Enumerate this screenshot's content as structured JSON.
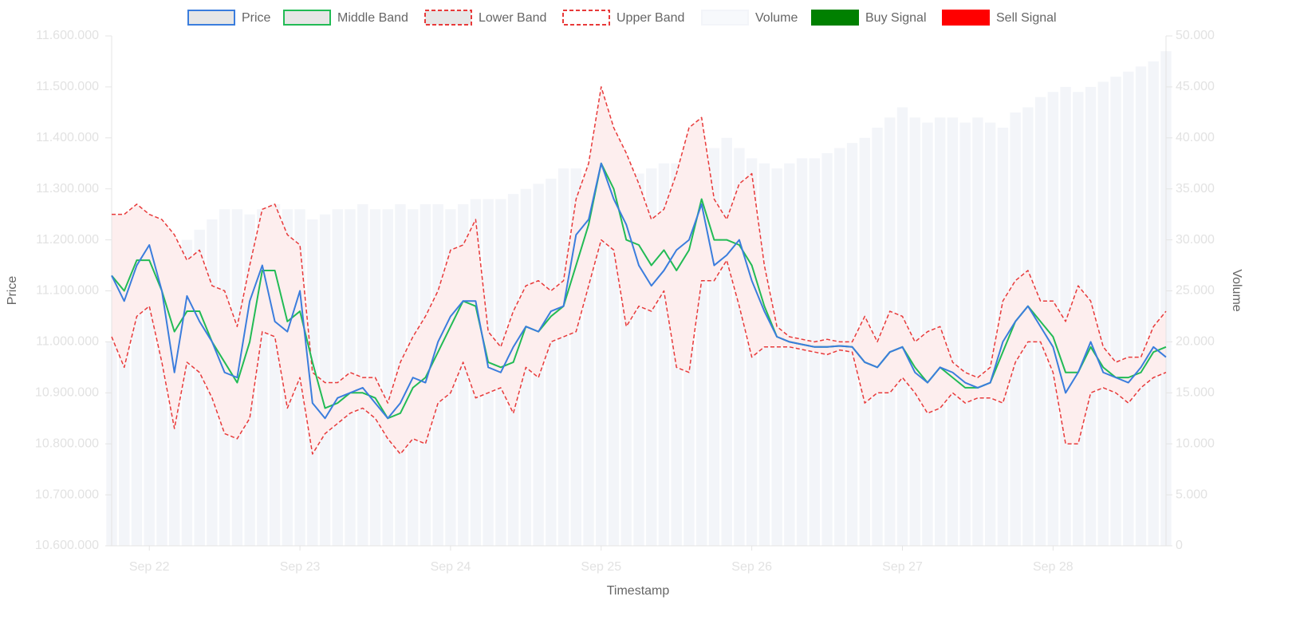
{
  "chart_data": {
    "type": "line",
    "x_label": "Timestamp",
    "y_label": "Price",
    "y2_label": "Volume",
    "band_fill": "#fdeeee",
    "categories": [
      null,
      null,
      null,
      "Sep 22",
      null,
      null,
      null,
      null,
      null,
      null,
      null,
      null,
      null,
      null,
      null,
      "Sep 23",
      null,
      null,
      null,
      null,
      null,
      null,
      null,
      null,
      null,
      null,
      null,
      "Sep 24",
      null,
      null,
      null,
      null,
      null,
      null,
      null,
      null,
      null,
      null,
      null,
      "Sep 25",
      null,
      null,
      null,
      null,
      null,
      null,
      null,
      null,
      null,
      null,
      null,
      "Sep 26",
      null,
      null,
      null,
      null,
      null,
      null,
      null,
      null,
      null,
      null,
      null,
      "Sep 27",
      null,
      null,
      null,
      null,
      null,
      null,
      null,
      null,
      null,
      null,
      null,
      "Sep 28",
      null,
      null,
      null,
      null,
      null,
      null,
      null,
      null,
      null
    ],
    "ylim": [
      10600000,
      11600000
    ],
    "yticks": [
      {
        "value": 10600000,
        "label": "10.600.000"
      },
      {
        "value": 10700000,
        "label": "10.700.000"
      },
      {
        "value": 10800000,
        "label": "10.800.000"
      },
      {
        "value": 10900000,
        "label": "10.900.000"
      },
      {
        "value": 11000000,
        "label": "11.000.000"
      },
      {
        "value": 11100000,
        "label": "11.100.000"
      },
      {
        "value": 11200000,
        "label": "11.200.000"
      },
      {
        "value": 11300000,
        "label": "11.300.000"
      },
      {
        "value": 11400000,
        "label": "11.400.000"
      },
      {
        "value": 11500000,
        "label": "11.500.000"
      },
      {
        "value": 11600000,
        "label": "11.600.000"
      }
    ],
    "y2lim": [
      0,
      50000
    ],
    "y2ticks": [
      0,
      {
        "value": 5000,
        "label": "5.000"
      },
      {
        "value": 10000,
        "label": "10.000"
      },
      {
        "value": 15000,
        "label": "15.000"
      },
      {
        "value": 20000,
        "label": "20.000"
      },
      {
        "value": 25000,
        "label": "25.000"
      },
      {
        "value": 30000,
        "label": "30.000"
      },
      {
        "value": 35000,
        "label": "35.000"
      },
      {
        "value": 40000,
        "label": "40.000"
      },
      {
        "value": 45000,
        "label": "45.000"
      },
      {
        "value": 50000,
        "label": "50.000"
      }
    ],
    "series": [
      {
        "name": "Price",
        "color": "#3b7ddd",
        "swatch_fill": "#e6e6e6",
        "values": [
          11130000,
          11080000,
          11150000,
          11190000,
          11100000,
          10940000,
          11090000,
          11040000,
          11000000,
          10940000,
          10930000,
          11080000,
          11150000,
          11040000,
          11020000,
          11100000,
          10880000,
          10850000,
          10890000,
          10900000,
          10910000,
          10880000,
          10850000,
          10880000,
          10930000,
          10920000,
          11000000,
          11050000,
          11080000,
          11080000,
          10950000,
          10940000,
          10990000,
          11030000,
          11020000,
          11060000,
          11070000,
          11210000,
          11240000,
          11350000,
          11280000,
          11230000,
          11150000,
          11110000,
          11140000,
          11180000,
          11200000,
          11270000,
          11150000,
          11170000,
          11200000,
          11120000,
          11060000,
          11010000,
          11000000,
          10995000,
          10990000,
          10990000,
          10992000,
          10990000,
          10960000,
          10950000,
          10980000,
          10990000,
          10940000,
          10920000,
          10950000,
          10940000,
          10920000,
          10910000,
          10920000,
          11000000,
          11040000,
          11070000,
          11030000,
          10990000,
          10900000,
          10940000,
          11000000,
          10940000,
          10930000,
          10920000,
          10950000,
          10990000,
          10970000
        ]
      },
      {
        "name": "Middle Band",
        "color": "#22bb55",
        "swatch_fill": "#e6e6e6",
        "values": [
          11130000,
          11100000,
          11160000,
          11160000,
          11100000,
          11020000,
          11060000,
          11060000,
          11000000,
          10960000,
          10920000,
          11000000,
          11140000,
          11140000,
          11040000,
          11060000,
          10960000,
          10870000,
          10880000,
          10900000,
          10900000,
          10890000,
          10850000,
          10860000,
          10910000,
          10930000,
          10980000,
          11030000,
          11080000,
          11070000,
          10960000,
          10950000,
          10960000,
          11030000,
          11020000,
          11050000,
          11070000,
          11150000,
          11230000,
          11350000,
          11300000,
          11200000,
          11190000,
          11150000,
          11180000,
          11140000,
          11180000,
          11280000,
          11200000,
          11200000,
          11190000,
          11150000,
          11070000,
          11010000,
          11000000,
          10995000,
          10990000,
          10990000,
          10992000,
          10990000,
          10960000,
          10950000,
          10980000,
          10990000,
          10950000,
          10920000,
          10950000,
          10930000,
          10910000,
          10910000,
          10920000,
          10980000,
          11040000,
          11070000,
          11040000,
          11010000,
          10940000,
          10940000,
          10990000,
          10950000,
          10930000,
          10930000,
          10940000,
          10980000,
          10990000
        ]
      },
      {
        "name": "Lower Band",
        "color": "#e83a3a",
        "swatch_fill": "#e6e6e6",
        "dashed": true,
        "values": [
          11010000,
          10950000,
          11050000,
          11070000,
          10960000,
          10830000,
          10960000,
          10940000,
          10890000,
          10820000,
          10810000,
          10850000,
          11020000,
          11010000,
          10870000,
          10930000,
          10780000,
          10820000,
          10840000,
          10860000,
          10870000,
          10850000,
          10810000,
          10780000,
          10810000,
          10800000,
          10880000,
          10900000,
          10960000,
          10890000,
          10900000,
          10910000,
          10860000,
          10950000,
          10930000,
          11000000,
          11010000,
          11020000,
          11110000,
          11200000,
          11180000,
          11030000,
          11070000,
          11060000,
          11100000,
          10950000,
          10940000,
          11120000,
          11120000,
          11160000,
          11070000,
          10970000,
          10990000,
          10990000,
          10990000,
          10985000,
          10980000,
          10975000,
          10984000,
          10980000,
          10880000,
          10900000,
          10900000,
          10930000,
          10900000,
          10860000,
          10870000,
          10900000,
          10880000,
          10890000,
          10890000,
          10880000,
          10960000,
          11000000,
          11000000,
          10940000,
          10800000,
          10800000,
          10900000,
          10910000,
          10900000,
          10880000,
          10910000,
          10930000,
          10940000
        ]
      },
      {
        "name": "Upper Band",
        "color": "#e83a3a",
        "swatch_fill": "#ffffff",
        "dashed": true,
        "values": [
          11250000,
          11250000,
          11270000,
          11250000,
          11240000,
          11210000,
          11160000,
          11180000,
          11110000,
          11100000,
          11030000,
          11150000,
          11260000,
          11270000,
          11210000,
          11190000,
          10940000,
          10920000,
          10920000,
          10940000,
          10930000,
          10930000,
          10880000,
          10960000,
          11010000,
          11050000,
          11100000,
          11180000,
          11190000,
          11240000,
          11020000,
          10990000,
          11060000,
          11110000,
          11120000,
          11100000,
          11120000,
          11280000,
          11350000,
          11500000,
          11420000,
          11370000,
          11310000,
          11240000,
          11260000,
          11330000,
          11420000,
          11440000,
          11280000,
          11240000,
          11310000,
          11330000,
          11150000,
          11030000,
          11010000,
          11005000,
          11000000,
          11005000,
          11000000,
          11000000,
          11050000,
          11000000,
          11060000,
          11050000,
          11000000,
          11020000,
          11030000,
          10960000,
          10940000,
          10930000,
          10950000,
          11080000,
          11120000,
          11140000,
          11080000,
          11080000,
          11040000,
          11110000,
          11080000,
          10990000,
          10960000,
          10970000,
          10970000,
          11030000,
          11060000
        ]
      },
      {
        "name": "Volume",
        "color": "#f3f5f9",
        "swatch_fill": "#f7f9fc",
        "type": "bar",
        "axis": "y2",
        "values": [
          20000,
          22000,
          24000,
          27000,
          28000,
          29000,
          30000,
          31000,
          32000,
          33000,
          33000,
          32500,
          33000,
          33500,
          33000,
          33000,
          32000,
          32500,
          33000,
          33000,
          33500,
          33000,
          33000,
          33500,
          33000,
          33500,
          33500,
          33000,
          33500,
          34000,
          34000,
          34000,
          34500,
          35000,
          35500,
          36000,
          37000,
          37000,
          36500,
          37500,
          37000,
          37000,
          36500,
          37000,
          37500,
          37500,
          38000,
          38500,
          39000,
          40000,
          39000,
          38000,
          37500,
          37000,
          37500,
          38000,
          38000,
          38500,
          39000,
          39500,
          40000,
          41000,
          42000,
          43000,
          42000,
          41500,
          42000,
          42000,
          41500,
          42000,
          41500,
          41000,
          42500,
          43000,
          44000,
          44500,
          45000,
          44500,
          45000,
          45500,
          46000,
          46500,
          47000,
          47500,
          48500
        ]
      },
      {
        "name": "Buy Signal",
        "color": "#008000",
        "swatch_fill": "#008000",
        "values": [
          null,
          null,
          null,
          null,
          null,
          null,
          null,
          null,
          null,
          null,
          null,
          null,
          null,
          null,
          null,
          null,
          null,
          null,
          null,
          null,
          null,
          null,
          null,
          null,
          null,
          null,
          null,
          null,
          null,
          null,
          null,
          null,
          null,
          null,
          null,
          null,
          null,
          null,
          null,
          null,
          null,
          null,
          null,
          null,
          null,
          null,
          null,
          null,
          null,
          null,
          null,
          null,
          null,
          null,
          null,
          null,
          null,
          null,
          null,
          null,
          null,
          null,
          null,
          null,
          null,
          null,
          null,
          null,
          null,
          null,
          null,
          null,
          null,
          null,
          null,
          null,
          null,
          null,
          null,
          null,
          null,
          null,
          null,
          null,
          null
        ]
      },
      {
        "name": "Sell Signal",
        "color": "#ff0000",
        "swatch_fill": "#ff0000",
        "values": [
          null,
          null,
          null,
          null,
          null,
          null,
          null,
          null,
          null,
          null,
          null,
          null,
          null,
          null,
          null,
          null,
          null,
          null,
          null,
          null,
          null,
          null,
          null,
          null,
          null,
          null,
          null,
          null,
          null,
          null,
          null,
          null,
          null,
          null,
          null,
          null,
          null,
          null,
          null,
          null,
          null,
          null,
          null,
          null,
          null,
          null,
          null,
          null,
          null,
          null,
          null,
          null,
          null,
          null,
          null,
          null,
          null,
          null,
          null,
          null,
          null,
          null,
          null,
          null,
          null,
          null,
          null,
          null,
          null,
          null,
          null,
          null,
          null,
          null,
          null,
          null,
          null,
          null,
          null,
          null,
          null,
          null,
          null,
          null,
          null
        ]
      }
    ]
  }
}
